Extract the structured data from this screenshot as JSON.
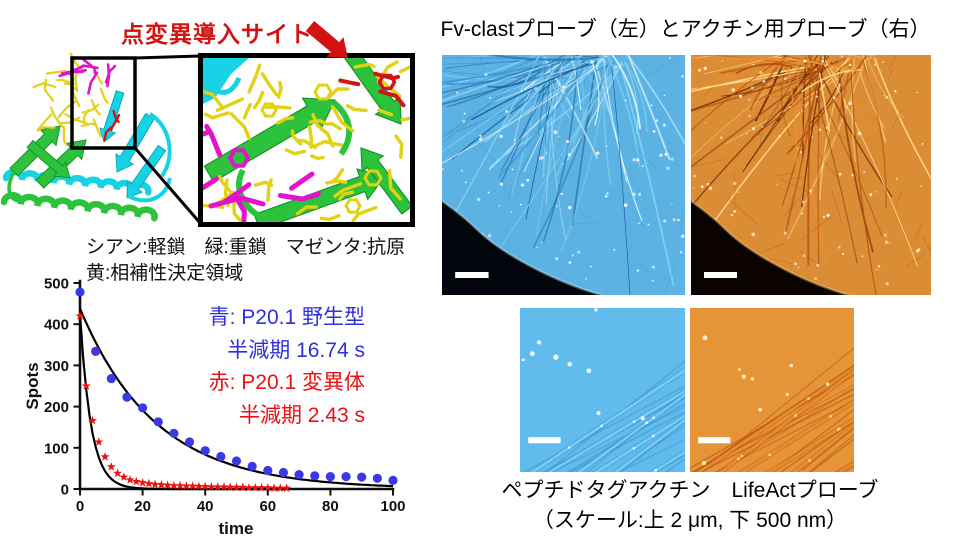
{
  "left_panel": {
    "mutation_label": "点変異導入サイト",
    "structure_caption_line1": "シアン:軽鎖　緑:重鎖　マゼンタ:抗原",
    "structure_caption_line2": "黄:相補性決定領域",
    "label_color": "#d31212",
    "structure_palette": {
      "cyan": "#16d2e4",
      "green": "#2cc23b",
      "dark_green": "#159428",
      "yellow": "#e2d114",
      "magenta": "#e312cb",
      "red": "#d01515"
    }
  },
  "chart_data": {
    "type": "scatter",
    "title": "",
    "xlabel": "time",
    "ylabel": "Spots",
    "xlim": [
      0,
      100
    ],
    "ylim": [
      0,
      500
    ],
    "xticks": [
      0,
      20,
      40,
      60,
      80,
      100
    ],
    "yticks": [
      0,
      100,
      200,
      300,
      400,
      500
    ],
    "grid": false,
    "legend_position": "right",
    "series": [
      {
        "name": "P20.1 野生型",
        "color": "#3a3ae2",
        "marker": "circle",
        "half_life_s": 16.74,
        "x": [
          0,
          5,
          10,
          15,
          20,
          25,
          30,
          35,
          40,
          45,
          50,
          55,
          60,
          65,
          70,
          75,
          80,
          85,
          90,
          95,
          100
        ],
        "y": [
          478,
          334,
          268,
          223,
          197,
          163,
          135,
          114,
          93,
          79,
          68,
          55,
          45,
          40,
          35,
          32,
          30,
          30,
          29,
          26,
          21
        ]
      },
      {
        "name": "P20.1 変異体",
        "color": "#ee1010",
        "marker": "star",
        "half_life_s": 2.43,
        "x": [
          0,
          2,
          4,
          6,
          8,
          10,
          12,
          14,
          16,
          18,
          20,
          22,
          24,
          26,
          28,
          30,
          32,
          34,
          36,
          38,
          40,
          42,
          44,
          46,
          48,
          50,
          52,
          54,
          56,
          58,
          60,
          62,
          64,
          66
        ],
        "y": [
          420,
          250,
          166,
          114,
          78,
          54,
          38,
          29,
          22,
          18,
          15,
          13,
          11,
          10,
          9,
          8,
          8,
          7,
          7,
          6,
          6,
          5,
          5,
          5,
          4,
          4,
          4,
          3,
          3,
          3,
          3,
          2,
          2,
          2
        ]
      }
    ],
    "fits": [
      {
        "series": "P20.1 野生型",
        "A": 438,
        "half_life": 16.74,
        "t_end": 100,
        "color": "#000000"
      },
      {
        "series": "P20.1 変異体",
        "A": 425,
        "half_life": 2.43,
        "t_end": 66,
        "color": "#000000"
      }
    ],
    "legend": [
      {
        "text": "青: P20.1 野生型",
        "color": "#2f2fe0"
      },
      {
        "text": "半減期 16.74 s",
        "color": "#2f2fe0"
      },
      {
        "text": "赤: P20.1 変異体",
        "color": "#ee1010"
      },
      {
        "text": "半減期 2.43 s",
        "color": "#ee1010"
      }
    ]
  },
  "right_panel": {
    "title": "Fv-clastプローブ（左）とアクチン用プローブ（右）",
    "caption_line1": "ペプチドタグアクチン　LifeActプローブ",
    "caption_line2": "（スケール:上 2 μm, 下 500 nm）",
    "images": [
      {
        "id": "micro-large-cyan",
        "probe": "Fv-clastプローブ",
        "palette": "cyan",
        "scale_bar": "2 μm"
      },
      {
        "id": "micro-large-orange",
        "probe": "アクチン用プローブ",
        "palette": "orange",
        "scale_bar": "2 μm"
      },
      {
        "id": "micro-small-cyan",
        "probe": "ペプチドタグアクチン",
        "palette": "cyan",
        "scale_bar": "500 nm"
      },
      {
        "id": "micro-small-orange",
        "probe": "LifeActプローブ",
        "palette": "orange",
        "scale_bar": "500 nm"
      }
    ],
    "palettes": {
      "cyan": {
        "bg": "#02050c",
        "cell": "#0a1d3a",
        "speckle_rgb": [
          0.12,
          0.5,
          0.85
        ],
        "filaments": [
          "#1d5f9f",
          "#3b92d4",
          "#7fd0f2",
          "#dff7ff"
        ],
        "dots": "#ffffff"
      },
      "orange": {
        "bg": "#0a0300",
        "cell": "#200a00",
        "speckle_rgb": [
          0.78,
          0.3,
          0.04
        ],
        "filaments": [
          "#6f2404",
          "#b44e0e",
          "#ee8f2c",
          "#ffd98c"
        ],
        "dots": "#fff2d0"
      }
    }
  }
}
